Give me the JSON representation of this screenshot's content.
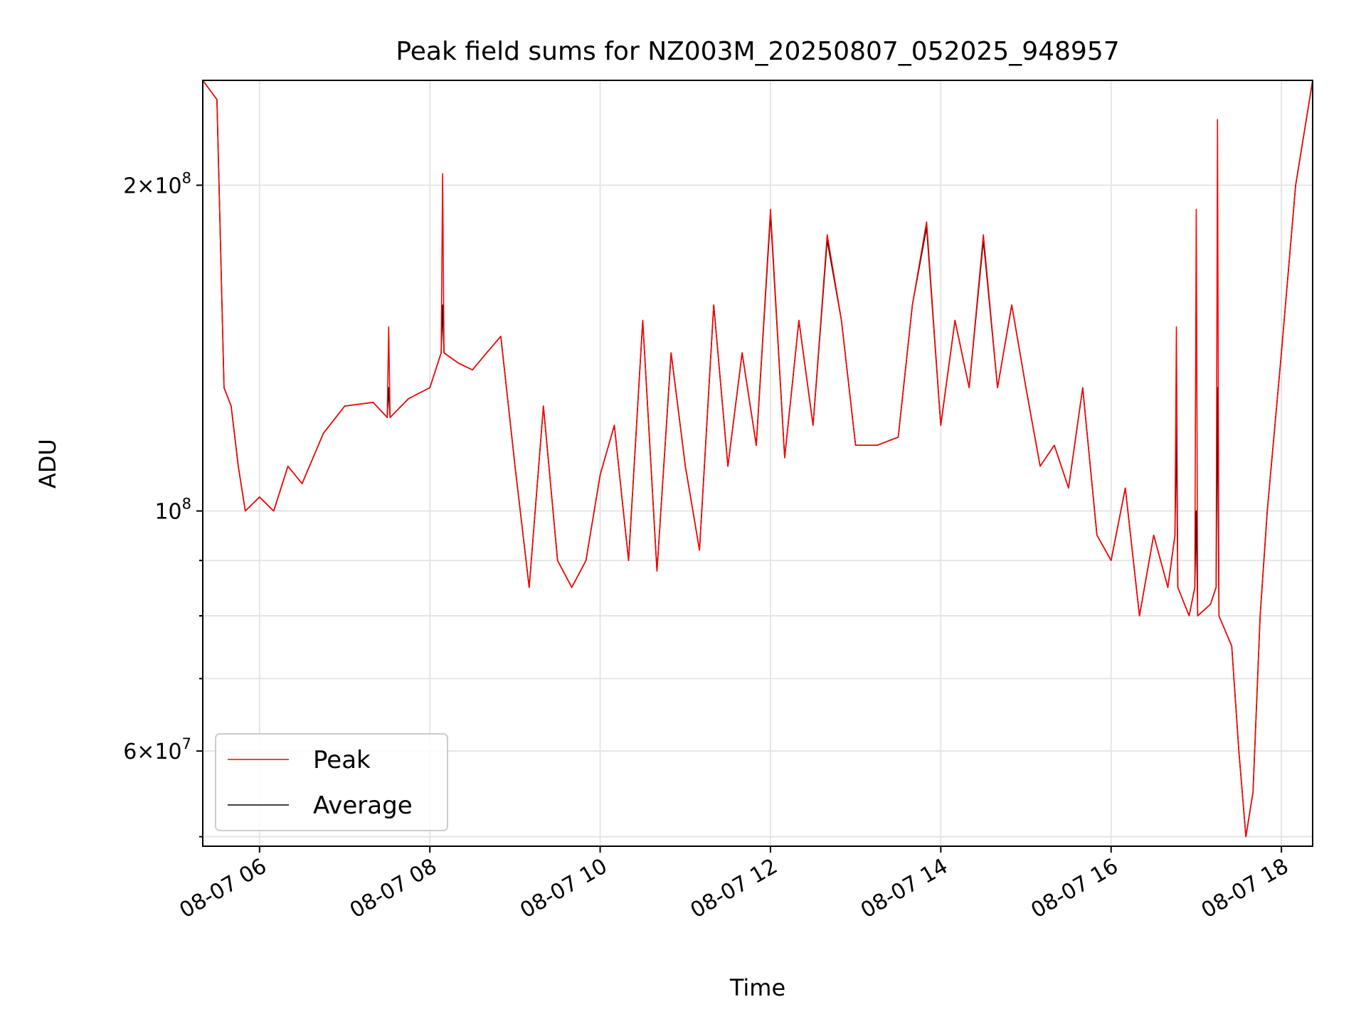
{
  "chart_data": {
    "type": "line",
    "title": "Peak field sums for NZ003M_20250807_052025_948957",
    "xlabel": "Time",
    "ylabel": "ADU",
    "yscale": "log",
    "ylim": [
      49000000,
      250000000
    ],
    "xlim": [
      "2025-08-07 05:20",
      "2025-08-07 18:22"
    ],
    "grid": true,
    "legend_position": "lower-left",
    "x_ticks": [
      {
        "value": "2025-08-07 06:00",
        "label": "08-07 06"
      },
      {
        "value": "2025-08-07 08:00",
        "label": "08-07 08"
      },
      {
        "value": "2025-08-07 10:00",
        "label": "08-07 10"
      },
      {
        "value": "2025-08-07 12:00",
        "label": "08-07 12"
      },
      {
        "value": "2025-08-07 14:00",
        "label": "08-07 14"
      },
      {
        "value": "2025-08-07 16:00",
        "label": "08-07 16"
      },
      {
        "value": "2025-08-07 18:00",
        "label": "08-07 18"
      }
    ],
    "y_ticks_major": [
      {
        "value": 60000000,
        "mant": "6",
        "exp": "7"
      },
      {
        "value": 100000000,
        "mant": "",
        "exp": "8"
      },
      {
        "value": 200000000,
        "mant": "2",
        "exp": "8"
      }
    ],
    "y_ticks_minor": [
      50000000,
      70000000,
      80000000,
      90000000
    ],
    "series": [
      {
        "name": "Peak",
        "color": "#ff0000",
        "x": [
          "2025-08-07 05:20",
          "2025-08-07 05:30",
          "2025-08-07 05:35",
          "2025-08-07 05:40",
          "2025-08-07 05:45",
          "2025-08-07 05:50",
          "2025-08-07 06:00",
          "2025-08-07 06:10",
          "2025-08-07 06:20",
          "2025-08-07 06:30",
          "2025-08-07 06:45",
          "2025-08-07 07:00",
          "2025-08-07 07:20",
          "2025-08-07 07:30",
          "2025-08-07 07:31",
          "2025-08-07 07:32",
          "2025-08-07 07:45",
          "2025-08-07 08:00",
          "2025-08-07 08:08",
          "2025-08-07 08:09",
          "2025-08-07 08:10",
          "2025-08-07 08:20",
          "2025-08-07 08:30",
          "2025-08-07 08:40",
          "2025-08-07 08:50",
          "2025-08-07 09:00",
          "2025-08-07 09:10",
          "2025-08-07 09:20",
          "2025-08-07 09:30",
          "2025-08-07 09:40",
          "2025-08-07 09:50",
          "2025-08-07 10:00",
          "2025-08-07 10:10",
          "2025-08-07 10:20",
          "2025-08-07 10:30",
          "2025-08-07 10:40",
          "2025-08-07 10:50",
          "2025-08-07 11:00",
          "2025-08-07 11:10",
          "2025-08-07 11:20",
          "2025-08-07 11:30",
          "2025-08-07 11:40",
          "2025-08-07 11:50",
          "2025-08-07 12:00",
          "2025-08-07 12:10",
          "2025-08-07 12:20",
          "2025-08-07 12:30",
          "2025-08-07 12:40",
          "2025-08-07 12:50",
          "2025-08-07 13:00",
          "2025-08-07 13:15",
          "2025-08-07 13:30",
          "2025-08-07 13:40",
          "2025-08-07 13:50",
          "2025-08-07 14:00",
          "2025-08-07 14:10",
          "2025-08-07 14:20",
          "2025-08-07 14:30",
          "2025-08-07 14:40",
          "2025-08-07 14:50",
          "2025-08-07 15:00",
          "2025-08-07 15:10",
          "2025-08-07 15:20",
          "2025-08-07 15:30",
          "2025-08-07 15:40",
          "2025-08-07 15:50",
          "2025-08-07 16:00",
          "2025-08-07 16:10",
          "2025-08-07 16:20",
          "2025-08-07 16:30",
          "2025-08-07 16:40",
          "2025-08-07 16:45",
          "2025-08-07 16:46",
          "2025-08-07 16:47",
          "2025-08-07 16:55",
          "2025-08-07 16:59",
          "2025-08-07 17:00",
          "2025-08-07 17:01",
          "2025-08-07 17:10",
          "2025-08-07 17:14",
          "2025-08-07 17:15",
          "2025-08-07 17:16",
          "2025-08-07 17:25",
          "2025-08-07 17:30",
          "2025-08-07 17:35",
          "2025-08-07 17:40",
          "2025-08-07 17:45",
          "2025-08-07 17:50",
          "2025-08-07 18:00",
          "2025-08-07 18:10",
          "2025-08-07 18:22"
        ],
        "y": [
          250000000,
          240000000,
          130000000,
          125000000,
          110000000,
          100000000,
          103000000,
          100000000,
          110000000,
          106000000,
          118000000,
          125000000,
          126000000,
          122000000,
          148000000,
          122000000,
          127000000,
          130000000,
          140000000,
          205000000,
          140000000,
          137000000,
          135000000,
          140000000,
          145000000,
          110000000,
          85000000,
          125000000,
          90000000,
          85000000,
          90000000,
          108000000,
          120000000,
          90000000,
          150000000,
          88000000,
          140000000,
          110000000,
          92000000,
          155000000,
          110000000,
          140000000,
          115000000,
          190000000,
          112000000,
          150000000,
          120000000,
          180000000,
          150000000,
          115000000,
          115000000,
          117000000,
          155000000,
          185000000,
          120000000,
          150000000,
          130000000,
          180000000,
          130000000,
          155000000,
          130000000,
          110000000,
          115000000,
          105000000,
          130000000,
          95000000,
          90000000,
          105000000,
          80000000,
          95000000,
          85000000,
          95000000,
          148000000,
          85000000,
          80000000,
          85000000,
          190000000,
          80000000,
          82000000,
          85000000,
          230000000,
          80000000,
          75000000,
          60000000,
          50000000,
          55000000,
          80000000,
          100000000,
          140000000,
          200000000,
          250000000
        ]
      },
      {
        "name": "Average",
        "color": "#000000",
        "x": [
          "2025-08-07 05:20",
          "2025-08-07 05:30",
          "2025-08-07 05:35",
          "2025-08-07 05:40",
          "2025-08-07 05:45",
          "2025-08-07 05:50",
          "2025-08-07 06:00",
          "2025-08-07 06:10",
          "2025-08-07 06:20",
          "2025-08-07 06:30",
          "2025-08-07 06:45",
          "2025-08-07 07:00",
          "2025-08-07 07:20",
          "2025-08-07 07:30",
          "2025-08-07 07:31",
          "2025-08-07 07:32",
          "2025-08-07 07:45",
          "2025-08-07 08:00",
          "2025-08-07 08:08",
          "2025-08-07 08:09",
          "2025-08-07 08:10",
          "2025-08-07 08:20",
          "2025-08-07 08:30",
          "2025-08-07 08:40",
          "2025-08-07 08:50",
          "2025-08-07 09:00",
          "2025-08-07 09:10",
          "2025-08-07 09:20",
          "2025-08-07 09:30",
          "2025-08-07 09:40",
          "2025-08-07 09:50",
          "2025-08-07 10:00",
          "2025-08-07 10:10",
          "2025-08-07 10:20",
          "2025-08-07 10:30",
          "2025-08-07 10:40",
          "2025-08-07 10:50",
          "2025-08-07 11:00",
          "2025-08-07 11:10",
          "2025-08-07 11:20",
          "2025-08-07 11:30",
          "2025-08-07 11:40",
          "2025-08-07 11:50",
          "2025-08-07 12:00",
          "2025-08-07 12:10",
          "2025-08-07 12:20",
          "2025-08-07 12:30",
          "2025-08-07 12:40",
          "2025-08-07 12:50",
          "2025-08-07 13:00",
          "2025-08-07 13:15",
          "2025-08-07 13:30",
          "2025-08-07 13:40",
          "2025-08-07 13:50",
          "2025-08-07 14:00",
          "2025-08-07 14:10",
          "2025-08-07 14:20",
          "2025-08-07 14:30",
          "2025-08-07 14:40",
          "2025-08-07 14:50",
          "2025-08-07 15:00",
          "2025-08-07 15:10",
          "2025-08-07 15:20",
          "2025-08-07 15:30",
          "2025-08-07 15:40",
          "2025-08-07 15:50",
          "2025-08-07 16:00",
          "2025-08-07 16:10",
          "2025-08-07 16:20",
          "2025-08-07 16:30",
          "2025-08-07 16:40",
          "2025-08-07 16:45",
          "2025-08-07 16:46",
          "2025-08-07 16:47",
          "2025-08-07 16:55",
          "2025-08-07 16:59",
          "2025-08-07 17:00",
          "2025-08-07 17:01",
          "2025-08-07 17:10",
          "2025-08-07 17:14",
          "2025-08-07 17:15",
          "2025-08-07 17:16",
          "2025-08-07 17:25",
          "2025-08-07 17:30",
          "2025-08-07 17:35",
          "2025-08-07 17:40",
          "2025-08-07 17:45",
          "2025-08-07 17:50",
          "2025-08-07 18:00",
          "2025-08-07 18:10",
          "2025-08-07 18:22"
        ],
        "y": [
          250000000,
          240000000,
          130000000,
          125000000,
          110000000,
          100000000,
          103000000,
          100000000,
          110000000,
          106000000,
          118000000,
          125000000,
          126000000,
          122000000,
          130000000,
          122000000,
          127000000,
          130000000,
          140000000,
          155000000,
          140000000,
          137000000,
          135000000,
          140000000,
          145000000,
          110000000,
          85000000,
          125000000,
          90000000,
          85000000,
          90000000,
          108000000,
          120000000,
          90000000,
          150000000,
          88000000,
          140000000,
          110000000,
          92000000,
          155000000,
          110000000,
          140000000,
          115000000,
          188000000,
          112000000,
          150000000,
          120000000,
          178000000,
          150000000,
          115000000,
          115000000,
          117000000,
          155000000,
          183000000,
          120000000,
          150000000,
          130000000,
          178000000,
          130000000,
          155000000,
          130000000,
          110000000,
          115000000,
          105000000,
          130000000,
          95000000,
          90000000,
          105000000,
          80000000,
          95000000,
          85000000,
          95000000,
          120000000,
          85000000,
          80000000,
          85000000,
          100000000,
          80000000,
          82000000,
          85000000,
          130000000,
          80000000,
          75000000,
          60000000,
          50000000,
          55000000,
          80000000,
          100000000,
          140000000,
          200000000,
          250000000
        ]
      }
    ]
  }
}
